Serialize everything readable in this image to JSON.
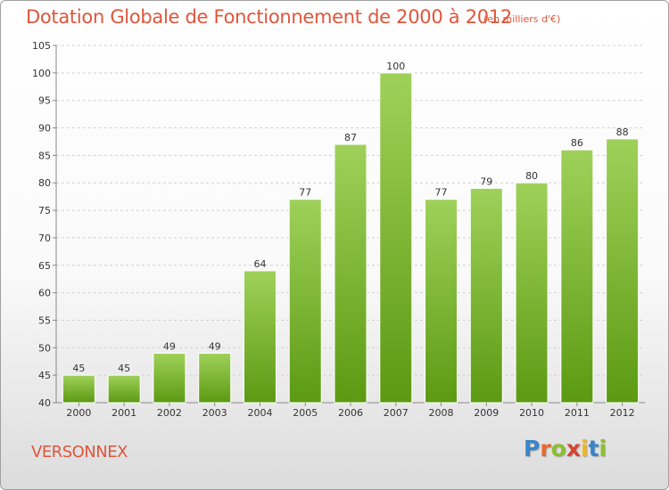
{
  "title": "Dotation Globale de Fonctionnement de 2000 à 2012",
  "subtitle": "(en milliers d'€)",
  "commune": "VERSONNEX",
  "brand": {
    "text": "Proxiti",
    "letter_colors": [
      "#3a83c9",
      "#e76a2b",
      "#8bbf2e",
      "#d6442f",
      "#f2b81b",
      "#3a83c9",
      "#8bbf2e"
    ]
  },
  "colors": {
    "bar_top": "#9fd15a",
    "bar_bottom": "#5c9a12",
    "title": "#e0553a",
    "grid": "#d0d0d0"
  },
  "chart_data": {
    "type": "bar",
    "categories": [
      "2000",
      "2001",
      "2002",
      "2003",
      "2004",
      "2005",
      "2006",
      "2007",
      "2008",
      "2009",
      "2010",
      "2011",
      "2012"
    ],
    "values": [
      45,
      45,
      49,
      49,
      64,
      77,
      87,
      100,
      77,
      79,
      80,
      86,
      88
    ],
    "yticks": [
      40,
      45,
      50,
      55,
      60,
      65,
      70,
      75,
      80,
      85,
      90,
      95,
      100,
      105
    ],
    "ylim": [
      40,
      105
    ],
    "grid": "horizontal",
    "data_labels": true
  }
}
